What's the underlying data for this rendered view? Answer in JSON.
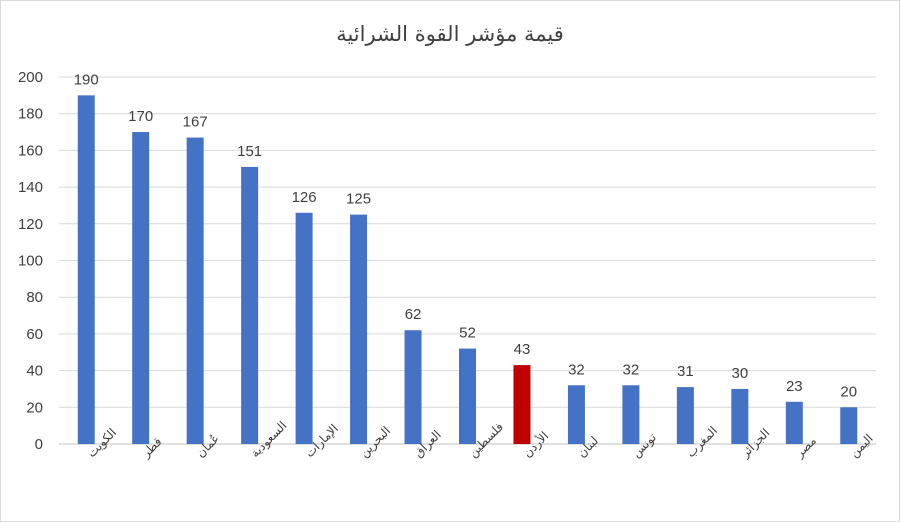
{
  "chart_data": {
    "type": "bar",
    "title": "قيمة مؤشر القوة الشرائية",
    "categories": [
      "الكويت",
      "قطر",
      "عُمان",
      "السعودية",
      "الإمارات",
      "البحرين",
      "العراق",
      "فلسطين",
      "الأردن",
      "لبنان",
      "تونس",
      "المغرب",
      "الجزائر",
      "مصر",
      "اليمن"
    ],
    "values": [
      190,
      170,
      167,
      151,
      126,
      125,
      62,
      52,
      43,
      32,
      32,
      31,
      30,
      23,
      20
    ],
    "data_labels": [
      "190",
      "170",
      "167",
      "151",
      "126",
      "125",
      "62",
      "52",
      "43",
      "32",
      "32",
      "31",
      "30",
      "23",
      "20"
    ],
    "y_ticks": [
      "0",
      "20",
      "40",
      "60",
      "80",
      "100",
      "120",
      "140",
      "160",
      "180",
      "200"
    ],
    "ylim": [
      0,
      200
    ],
    "grid": true,
    "legend": "none",
    "bar_color": "#4472c4",
    "highlight_color": "#c00000",
    "highlight_category": "الأردن"
  }
}
